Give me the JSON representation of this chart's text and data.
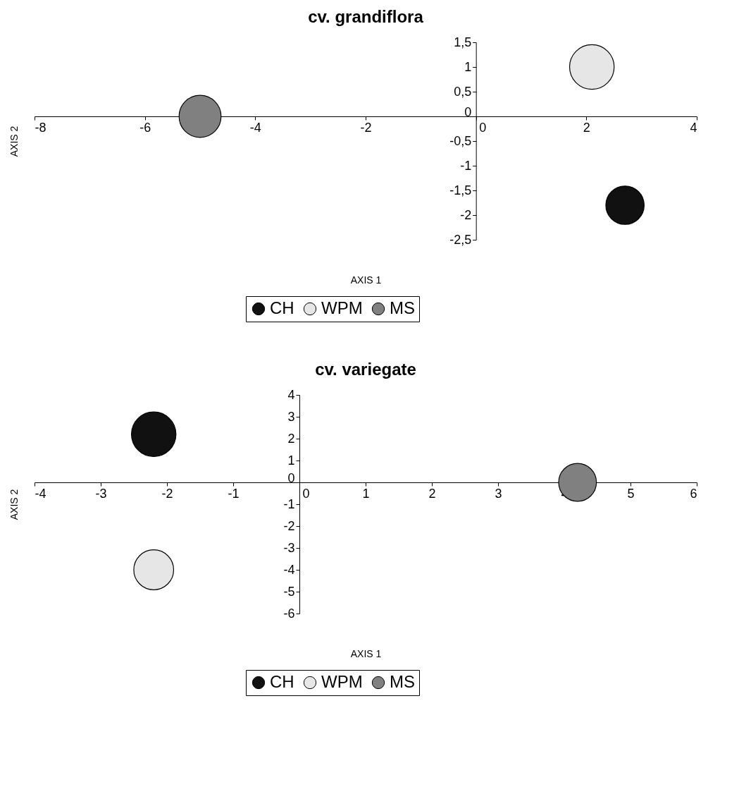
{
  "chart_data": [
    {
      "type": "bubble",
      "title": "cv. grandiflora",
      "xlabel": "AXIS 1",
      "ylabel": "AXIS 2",
      "xlim": [
        -8,
        4
      ],
      "ylim": [
        -2.5,
        1.5
      ],
      "xticks": [
        -8,
        -6,
        -4,
        -2,
        0,
        2,
        4
      ],
      "yticks": [
        {
          "value": 1.5,
          "label": "1,5"
        },
        1,
        {
          "value": 0.5,
          "label": "0,5"
        },
        0,
        {
          "value": -0.5,
          "label": "-0,5"
        },
        -1,
        {
          "value": -1.5,
          "label": "-1,5"
        },
        -2,
        {
          "value": -2.5,
          "label": "-2,5"
        }
      ],
      "grid": false,
      "legend": "bottom",
      "series": [
        {
          "name": "CH",
          "color": "#111111",
          "x": [
            2.7
          ],
          "values": [
            -1.8
          ],
          "sizes": [
            0.74
          ]
        },
        {
          "name": "WPM",
          "color": "#e6e6e6",
          "x": [
            2.1
          ],
          "values": [
            1
          ],
          "sizes": [
            1
          ]
        },
        {
          "name": "MS",
          "color": "#808080",
          "x": [
            -5
          ],
          "values": [
            0
          ],
          "sizes": [
            0.89
          ]
        }
      ]
    },
    {
      "type": "bubble",
      "title": "cv. variegate",
      "xlabel": "AXIS 1",
      "ylabel": "AXIS 2",
      "xlim": [
        -4,
        6
      ],
      "ylim": [
        -6,
        4
      ],
      "xticks": [
        -4,
        -3,
        -2,
        -1,
        0,
        1,
        2,
        3,
        4,
        5,
        6
      ],
      "yticks": [
        4,
        3,
        2,
        1,
        0,
        -1,
        -2,
        -3,
        -4,
        -5,
        -6
      ],
      "grid": false,
      "legend": "bottom",
      "series": [
        {
          "name": "CH",
          "color": "#111111",
          "x": [
            -2.2
          ],
          "values": [
            2.2
          ],
          "sizes": [
            1
          ]
        },
        {
          "name": "WPM",
          "color": "#e6e6e6",
          "x": [
            -2.2
          ],
          "values": [
            -4
          ],
          "sizes": [
            0.8
          ]
        },
        {
          "name": "MS",
          "color": "#808080",
          "x": [
            4.2
          ],
          "values": [
            0
          ],
          "sizes": [
            0.72
          ]
        }
      ]
    }
  ]
}
